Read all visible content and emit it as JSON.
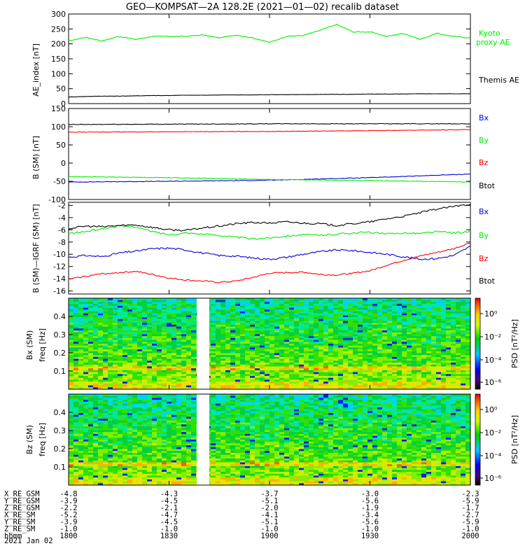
{
  "title": "GEO—KOMPSAT—2A 128.2E (2021—01—02) recalib dataset",
  "colors": {
    "black": "#000000",
    "red": "#ff0000",
    "green": "#00ee00",
    "blue": "#0000dd"
  },
  "chart_data": [
    {
      "type": "line",
      "panel": "AE",
      "ylabel": "AE_index [nT]",
      "ylim": [
        0,
        300
      ],
      "yticks": [
        0,
        50,
        100,
        150,
        200,
        250,
        300
      ],
      "x": [
        "18:00",
        "18:05",
        "18:10",
        "18:15",
        "18:20",
        "18:25",
        "18:30",
        "18:35",
        "18:40",
        "18:45",
        "18:50",
        "18:55",
        "19:00",
        "19:05",
        "19:10",
        "19:15",
        "19:20",
        "19:25",
        "19:30",
        "19:35",
        "19:40",
        "19:45",
        "19:50",
        "19:55",
        "20:00"
      ],
      "series": [
        {
          "name": "Kyoto proxy AE",
          "color": "#00ee00",
          "values": [
            210,
            222,
            210,
            225,
            215,
            225,
            225,
            225,
            230,
            220,
            230,
            220,
            205,
            225,
            228,
            245,
            265,
            240,
            240,
            225,
            235,
            215,
            235,
            225,
            220
          ]
        },
        {
          "name": "Themis AE",
          "color": "#000000",
          "values": [
            22,
            24,
            25,
            25,
            26,
            27,
            27,
            28,
            28,
            29,
            29,
            29,
            30,
            30,
            30,
            31,
            31,
            31,
            32,
            32,
            32,
            33,
            33,
            33,
            33
          ]
        }
      ],
      "legend": [
        "Kyoto",
        "proxy AE",
        "Themis AE"
      ]
    },
    {
      "type": "line",
      "panel": "B_SM",
      "ylabel": "B (SM) [nT]",
      "ylim": [
        -100,
        150
      ],
      "yticks": [
        -100,
        -50,
        0,
        50,
        100,
        150
      ],
      "x": [
        "18:00",
        "18:30",
        "19:00",
        "19:30",
        "20:00"
      ],
      "series": [
        {
          "name": "Bx",
          "color": "#0000dd",
          "values": [
            -52,
            -50,
            -47,
            -40,
            -30
          ]
        },
        {
          "name": "By",
          "color": "#00ee00",
          "values": [
            -37,
            -40,
            -45,
            -48,
            -52
          ]
        },
        {
          "name": "Bz",
          "color": "#ff0000",
          "values": [
            85,
            86,
            87,
            89,
            92
          ]
        },
        {
          "name": "Btot",
          "color": "#000000",
          "values": [
            106,
            107,
            108,
            108,
            108
          ]
        }
      ],
      "legend": [
        "Bx",
        "By",
        "Bz",
        "Btot"
      ]
    },
    {
      "type": "line",
      "panel": "B_SM_minus_IGRF",
      "ylabel": "B (SM)—IGRF (SM) [nT]",
      "ylim": [
        -16.5,
        -1.5
      ],
      "yticks": [
        -16,
        -14,
        -12,
        -10,
        -8,
        -6,
        -4,
        -2
      ],
      "x": [
        "18:00",
        "18:05",
        "18:10",
        "18:15",
        "18:20",
        "18:25",
        "18:30",
        "18:35",
        "18:40",
        "18:45",
        "18:50",
        "18:55",
        "19:00",
        "19:05",
        "19:10",
        "19:15",
        "19:20",
        "19:25",
        "19:30",
        "19:35",
        "19:40",
        "19:45",
        "19:50",
        "19:55",
        "20:00"
      ],
      "series": [
        {
          "name": "Bx",
          "color": "#0000dd",
          "values": [
            -10.5,
            -10.2,
            -10.4,
            -9.8,
            -9.5,
            -9.1,
            -9.0,
            -9.3,
            -9.8,
            -10.2,
            -10.3,
            -10.6,
            -10.8,
            -10.5,
            -10.0,
            -9.6,
            -9.3,
            -9.4,
            -9.7,
            -10.0,
            -10.4,
            -10.8,
            -10.7,
            -10.2,
            -8.7
          ]
        },
        {
          "name": "By",
          "color": "#00ee00",
          "values": [
            -6.6,
            -6.3,
            -5.8,
            -5.4,
            -5.5,
            -6.3,
            -6.8,
            -6.5,
            -6.7,
            -6.9,
            -7.2,
            -7.5,
            -7.3,
            -7.0,
            -6.8,
            -6.9,
            -6.7,
            -6.5,
            -6.4,
            -6.7,
            -6.5,
            -6.6,
            -6.3,
            -6.5,
            -6.3
          ]
        },
        {
          "name": "Bz",
          "color": "#ff0000",
          "values": [
            -14.1,
            -13.6,
            -13.2,
            -13.0,
            -12.8,
            -13.3,
            -13.9,
            -14.2,
            -14.4,
            -14.6,
            -14.4,
            -13.8,
            -13.1,
            -13.0,
            -12.9,
            -13.3,
            -13.4,
            -13.1,
            -12.7,
            -11.8,
            -11.0,
            -10.3,
            -9.7,
            -9.1,
            -8.1
          ]
        },
        {
          "name": "Btot",
          "color": "#000000",
          "values": [
            -5.8,
            -5.4,
            -5.5,
            -5.3,
            -5.2,
            -5.6,
            -6.0,
            -6.1,
            -5.7,
            -5.4,
            -5.0,
            -4.8,
            -4.9,
            -4.7,
            -4.9,
            -5.0,
            -5.3,
            -5.0,
            -4.7,
            -4.2,
            -3.8,
            -3.2,
            -2.6,
            -2.2,
            -1.8
          ]
        }
      ],
      "legend": [
        "Bx",
        "By",
        "Bz",
        "Btot"
      ]
    },
    {
      "type": "heatmap",
      "panel": "Bx_spectrogram",
      "ylabel": "Bx (SM)",
      "ylabel2": "freq [Hz]",
      "ylim": [
        0,
        0.5
      ],
      "yticks": [
        "0.1",
        "0.2",
        "0.3",
        "0.4"
      ],
      "data_gap": [
        "18:20",
        "18:21"
      ],
      "colorbar": {
        "label": "PSD [nT²/Hz]",
        "ticks": [
          "10⁰",
          "10⁻²",
          "10⁻⁴",
          "10⁻⁶"
        ]
      }
    },
    {
      "type": "heatmap",
      "panel": "Bz_spectrogram",
      "ylabel": "Bz (SM)",
      "ylabel2": "freq [Hz]",
      "ylim": [
        0,
        0.5
      ],
      "yticks": [
        "0.1",
        "0.2",
        "0.3",
        "0.4"
      ],
      "data_gap": [
        "18:20",
        "18:21"
      ],
      "colorbar": {
        "label": "PSD [nT²/Hz]",
        "ticks": [
          "10⁰",
          "10⁻²",
          "10⁻⁴",
          "10⁻⁶"
        ]
      }
    }
  ],
  "ephemeris": {
    "rows": [
      {
        "label": "X_RE_GSM",
        "values": [
          "-4.8",
          "-4.3",
          "-3.7",
          "-3.0",
          "-2.3"
        ]
      },
      {
        "label": "Y_RE_GSM",
        "values": [
          "-3.9",
          "-4.5",
          "-5.1",
          "-5.6",
          "-5.9"
        ]
      },
      {
        "label": "Z_RE_GSM",
        "values": [
          "-2.2",
          "-2.1",
          "-2.0",
          "-1.9",
          "-1.7"
        ]
      },
      {
        "label": "X_RE_SM",
        "values": [
          "-5.2",
          "-4.7",
          "-4.1",
          "-3.4",
          "-2.7"
        ]
      },
      {
        "label": "Y_RE_SM",
        "values": [
          "-3.9",
          "-4.5",
          "-5.1",
          "-5.6",
          "-5.9"
        ]
      },
      {
        "label": "Z_RE_SM",
        "values": [
          "-1.0",
          "-1.0",
          "-1.0",
          "-1.0",
          "-1.0"
        ]
      },
      {
        "label": "hhmm",
        "values": [
          "1800",
          "1830",
          "1900",
          "1930",
          "2000"
        ]
      }
    ],
    "date": "2021 Jan 02"
  }
}
